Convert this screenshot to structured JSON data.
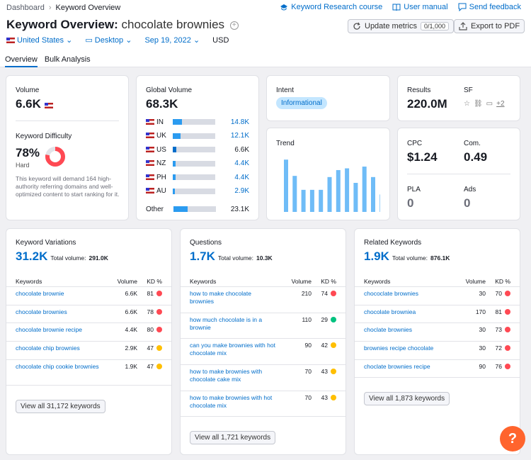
{
  "breadcrumb": {
    "home": "Dashboard",
    "current": "Keyword Overview"
  },
  "top_links": {
    "course": "Keyword Research course",
    "manual": "User manual",
    "feedback": "Send feedback"
  },
  "header": {
    "title": "Keyword Overview:",
    "keyword": "chocolate brownies"
  },
  "buttons": {
    "update": "Update metrics",
    "update_count": "0/1,000",
    "export": "Export to PDF"
  },
  "filters": {
    "country": "United States",
    "device": "Desktop",
    "date": "Sep 19, 2022",
    "currency": "USD"
  },
  "tabs": [
    "Overview",
    "Bulk Analysis"
  ],
  "volume": {
    "label": "Volume",
    "value": "6.6K"
  },
  "difficulty": {
    "label": "Keyword Difficulty",
    "value": "78%",
    "level": "Hard",
    "percent": 78,
    "note": "This keyword will demand 164 high-authority referring domains and well-optimized content to start ranking for it."
  },
  "global_volume": {
    "label": "Global Volume",
    "value": "68.3K",
    "rows": [
      {
        "cc": "IN",
        "value": "14.8K",
        "fill": 0.22,
        "blue": true
      },
      {
        "cc": "UK",
        "value": "12.1K",
        "fill": 0.18,
        "blue": true
      },
      {
        "cc": "US",
        "value": "6.6K",
        "fill": 0.08,
        "blue": false
      },
      {
        "cc": "NZ",
        "value": "4.4K",
        "fill": 0.07,
        "blue": true
      },
      {
        "cc": "PH",
        "value": "4.4K",
        "fill": 0.07,
        "blue": true
      },
      {
        "cc": "AU",
        "value": "2.9K",
        "fill": 0.05,
        "blue": true
      }
    ],
    "other": {
      "cc": "Other",
      "value": "23.1K",
      "fill": 0.33
    }
  },
  "intent": {
    "label": "Intent",
    "value": "Informational"
  },
  "trend": {
    "label": "Trend",
    "values": [
      0.9,
      0.62,
      0.38,
      0.38,
      0.38,
      0.6,
      0.72,
      0.75,
      0.5,
      0.78,
      0.6,
      0.3
    ]
  },
  "results": {
    "label": "Results",
    "value": "220.0M",
    "sf_label": "SF",
    "sf_more": "+2"
  },
  "cpc": {
    "label": "CPC",
    "value": "$1.24",
    "com_label": "Com.",
    "com_value": "0.49",
    "pla_label": "PLA",
    "pla_value": "0",
    "ads_label": "Ads",
    "ads_value": "0"
  },
  "colors": {
    "red": "#ff4953",
    "yellow": "#ffbf00",
    "green": "#00c27f",
    "accent": "#006dca",
    "bar": "#2b9bf0"
  },
  "variations": {
    "title": "Keyword Variations",
    "count": "31.2K",
    "total_label": "Total volume:",
    "total": "291.0K",
    "headers": {
      "kw": "Keywords",
      "vol": "Volume",
      "kd": "KD %"
    },
    "rows": [
      {
        "k": "chocolate brownie",
        "v": "6.6K",
        "kd": "81",
        "c": "red"
      },
      {
        "k": "chocolate brownies",
        "v": "6.6K",
        "kd": "78",
        "c": "red"
      },
      {
        "k": "chocolate brownie recipe",
        "v": "4.4K",
        "kd": "80",
        "c": "red"
      },
      {
        "k": "chocolate chip brownies",
        "v": "2.9K",
        "kd": "47",
        "c": "yellow"
      },
      {
        "k": "chocolate chip cookie brownies",
        "v": "1.9K",
        "kd": "47",
        "c": "yellow"
      }
    ],
    "view_all": "View all 31,172 keywords"
  },
  "questions": {
    "title": "Questions",
    "count": "1.7K",
    "total_label": "Total volume:",
    "total": "10.3K",
    "headers": {
      "kw": "Keywords",
      "vol": "Volume",
      "kd": "KD %"
    },
    "rows": [
      {
        "k": "how to make chocolate brownies",
        "v": "210",
        "kd": "74",
        "c": "red"
      },
      {
        "k": "how much chocolate is in a brownie",
        "v": "110",
        "kd": "29",
        "c": "green"
      },
      {
        "k": "can you make brownies with hot chocolate mix",
        "v": "90",
        "kd": "42",
        "c": "yellow"
      },
      {
        "k": "how to make brownies with chocolate cake mix",
        "v": "70",
        "kd": "43",
        "c": "yellow"
      },
      {
        "k": "how to make brownies with hot chocolate mix",
        "v": "70",
        "kd": "43",
        "c": "yellow"
      }
    ],
    "view_all": "View all 1,721 keywords"
  },
  "related": {
    "title": "Related Keywords",
    "count": "1.9K",
    "total_label": "Total volume:",
    "total": "876.1K",
    "headers": {
      "kw": "Keywords",
      "vol": "Volume",
      "kd": "KD %"
    },
    "rows": [
      {
        "k": "chococlate brownies",
        "v": "30",
        "kd": "70",
        "c": "red"
      },
      {
        "k": "chocolate browniea",
        "v": "170",
        "kd": "81",
        "c": "red"
      },
      {
        "k": "choclate brownies",
        "v": "30",
        "kd": "73",
        "c": "red"
      },
      {
        "k": "brownies recipe chocolate",
        "v": "30",
        "kd": "72",
        "c": "red"
      },
      {
        "k": "choclate brownies recipe",
        "v": "90",
        "kd": "76",
        "c": "red"
      }
    ],
    "view_all": "View all 1,873 keywords"
  },
  "help": {
    "label": "?"
  }
}
